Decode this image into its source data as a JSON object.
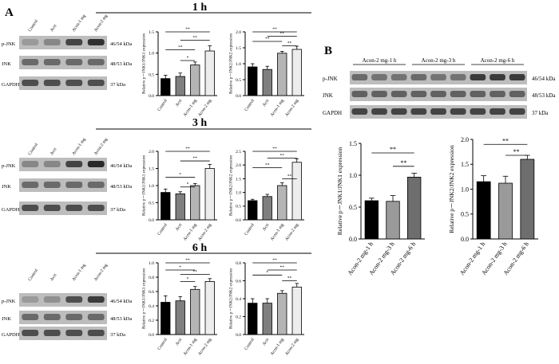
{
  "panel_labels": [
    "A",
    "B"
  ],
  "blot_labels": {
    "lanes_A": [
      "Control",
      "Acrt",
      "Acon-1 mg",
      "Acon-2 mg"
    ],
    "rows": [
      "p-JNK",
      "JNK",
      "GAPDH"
    ],
    "sizes": [
      "46/54 kDa",
      "48/53 kDa",
      "37 kDa"
    ],
    "groups_B": [
      "Acon-2 mg-1 h",
      "Acon-2 mg-3 h",
      "Acon-2 mg-6 h"
    ]
  },
  "timepoint_titles": [
    "1 h",
    "3 h",
    "6 h"
  ],
  "colors": {
    "control": "#000000",
    "acrt": "#7f7f7f",
    "acon1": "#b5b5b5",
    "acon2": "#ededed",
    "b1": "#000000",
    "b2": "#9a9a9a",
    "b3": "#6e6e6e"
  },
  "chart_data": [
    {
      "type": "bar",
      "panel": "A-1h-JNK1",
      "categories": [
        "Control",
        "Acrt",
        "Acon-1 mg",
        "Acon-2 mg"
      ],
      "values": [
        0.4,
        0.45,
        0.72,
        1.05
      ],
      "errors": [
        0.08,
        0.08,
        0.07,
        0.12
      ],
      "ylabel": "Relative p－JNK1/JNK1 expression",
      "ylim": [
        0,
        1.5
      ],
      "yticks": [
        "0.0",
        "0.5",
        "1.0",
        "1.5"
      ],
      "significance": [
        "*",
        "**",
        "**",
        "**"
      ]
    },
    {
      "type": "bar",
      "panel": "A-1h-JNK2",
      "categories": [
        "Control",
        "Acrt",
        "Acon-1 mg",
        "Acon-2 mg"
      ],
      "values": [
        0.9,
        0.82,
        1.33,
        1.45
      ],
      "errors": [
        0.1,
        0.1,
        0.06,
        0.1
      ],
      "ylabel": "Relative p－JNK2/JNK2 expression",
      "ylim": [
        0,
        2.0
      ],
      "yticks": [
        "0.0",
        "0.5",
        "1.0",
        "1.5",
        "2.0"
      ],
      "significance": [
        "**",
        "**",
        "**",
        "**"
      ]
    },
    {
      "type": "bar",
      "panel": "A-3h-JNK1",
      "categories": [
        "Control",
        "Acrt",
        "Acon-1 mg",
        "Acon-2 mg"
      ],
      "values": [
        0.8,
        0.76,
        1.0,
        1.5
      ],
      "errors": [
        0.1,
        0.06,
        0.06,
        0.12
      ],
      "ylabel": "Relative p－JNK1/JNK1 expression",
      "ylim": [
        0,
        2.0
      ],
      "yticks": [
        "0.0",
        "0.5",
        "1.0",
        "1.5",
        "2.0"
      ],
      "significance": [
        "*",
        "*",
        "**",
        "**"
      ]
    },
    {
      "type": "bar",
      "panel": "A-3h-JNK2",
      "categories": [
        "Control",
        "Acrt",
        "Acon-1 mg",
        "Acon-2 mg"
      ],
      "values": [
        0.7,
        0.85,
        1.25,
        2.1
      ],
      "errors": [
        0.05,
        0.08,
        0.1,
        0.13
      ],
      "ylabel": "Relative p－JNK2/JNK2 expression",
      "ylim": [
        0,
        2.5
      ],
      "yticks": [
        "0.0",
        "0.5",
        "1.0",
        "1.5",
        "2.0",
        "2.5"
      ],
      "significance": [
        "**",
        "**",
        "**",
        "**"
      ]
    },
    {
      "type": "bar",
      "panel": "A-6h-JNK1",
      "categories": [
        "Control",
        "Acrt",
        "Acon-1 mg",
        "Acon-2 mg"
      ],
      "values": [
        0.45,
        0.47,
        0.63,
        0.74
      ],
      "errors": [
        0.09,
        0.06,
        0.04,
        0.04
      ],
      "ylabel": "Relative p－JNK1/JNK1 expression",
      "ylim": [
        0,
        1.0
      ],
      "yticks": [
        "0.0",
        "0.2",
        "0.4",
        "0.6",
        "0.8",
        "1.0"
      ],
      "significance": [
        "*",
        "*",
        "**",
        "**"
      ]
    },
    {
      "type": "bar",
      "panel": "A-6h-JNK2",
      "categories": [
        "Control",
        "Acrt",
        "Acon-1 mg",
        "Acon-2 mg"
      ],
      "values": [
        0.35,
        0.35,
        0.46,
        0.53
      ],
      "errors": [
        0.05,
        0.05,
        0.03,
        0.04
      ],
      "ylabel": "Relative p－JNK2/JNK2 expression",
      "ylim": [
        0,
        0.8
      ],
      "yticks": [
        "0.0",
        "0.2",
        "0.4",
        "0.6",
        "0.8"
      ],
      "significance": [
        "*",
        "**",
        "**",
        "**"
      ]
    },
    {
      "type": "bar",
      "panel": "B-JNK1",
      "categories": [
        "Acon-2 mg-1 h",
        "Acon-2 mg-3 h",
        "Acon-2 mg-6 h"
      ],
      "values": [
        0.6,
        0.59,
        0.97
      ],
      "errors": [
        0.04,
        0.09,
        0.06
      ],
      "ylabel": "Relative p－JNK1/JNK1 expression",
      "ylim": [
        0,
        1.5
      ],
      "yticks": [
        "0.0",
        "0.5",
        "1.0",
        "1.5"
      ],
      "significance": [
        "**",
        "**"
      ]
    },
    {
      "type": "bar",
      "panel": "B-JNK2",
      "categories": [
        "Acon-2 mg-1 h",
        "Acon-2 mg-3 h",
        "Acon-2 mg-6 h"
      ],
      "values": [
        1.15,
        1.12,
        1.6
      ],
      "errors": [
        0.12,
        0.14,
        0.08
      ],
      "ylabel": "Relative p－JNK2/JNK2 expression",
      "ylim": [
        0,
        2.0
      ],
      "yticks": [
        "0.0",
        "0.5",
        "1.0",
        "1.5",
        "2.0"
      ],
      "significance": [
        "**",
        "**"
      ]
    }
  ]
}
